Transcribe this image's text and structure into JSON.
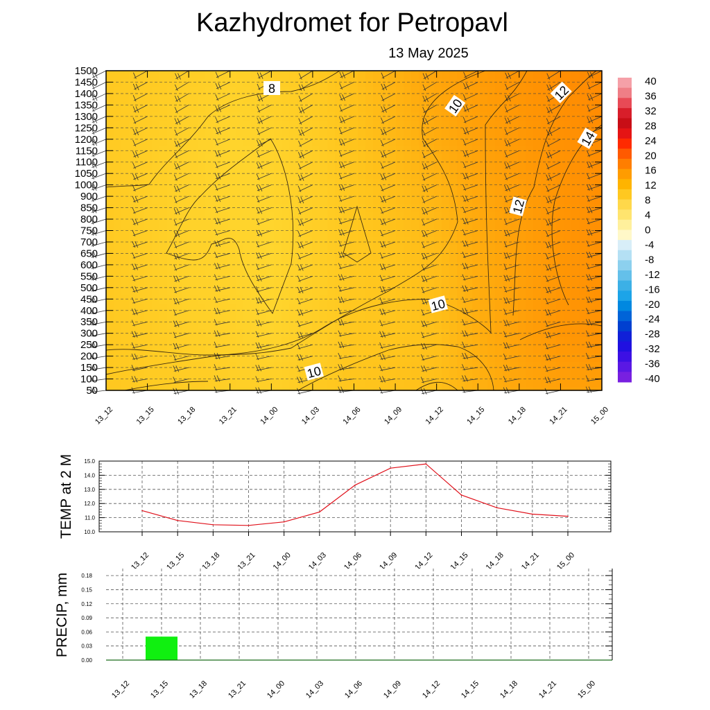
{
  "header": {
    "title": "Kazhydromet  for Petropavl",
    "date": "13 May 2025"
  },
  "chart_data": [
    {
      "type": "heatmap",
      "name": "upper-air cross-section",
      "time_labels": [
        "13_12",
        "13_15",
        "13_18",
        "13_21",
        "14_00",
        "14_03",
        "14_06",
        "14_09",
        "14_12",
        "14_15",
        "14_18",
        "14_21",
        "15_00"
      ],
      "levels": [
        50,
        100,
        150,
        200,
        250,
        300,
        350,
        400,
        450,
        500,
        550,
        600,
        650,
        700,
        750,
        800,
        850,
        900,
        1000,
        1050,
        1100,
        1150,
        1200,
        1250,
        1300,
        1350,
        1400,
        1450,
        1500
      ],
      "temperature_field": [
        [
          9.5,
          9.3,
          9.0,
          8.6,
          8.9,
          9.4,
          10.4,
          11.6,
          12.8,
          13.5,
          14.2,
          15.0,
          15.4
        ],
        [
          9.3,
          9.0,
          8.6,
          8.2,
          8.4,
          9.0,
          10.0,
          11.0,
          12.0,
          13.0,
          13.7,
          14.5,
          15.0
        ],
        [
          9.3,
          8.9,
          8.5,
          8.2,
          8.2,
          8.8,
          9.7,
          10.5,
          11.2,
          12.4,
          13.3,
          14.2,
          14.8
        ],
        [
          9.4,
          9.0,
          8.5,
          8.4,
          8.0,
          8.8,
          9.6,
          10.0,
          10.6,
          12.0,
          13.0,
          14.0,
          14.6
        ],
        [
          9.5,
          9.2,
          8.8,
          8.6,
          8.2,
          8.9,
          9.7,
          9.9,
          10.3,
          11.8,
          13.0,
          14.0,
          14.4
        ],
        [
          9.6,
          9.3,
          9.2,
          8.9,
          8.8,
          9.3,
          9.9,
          10.2,
          10.4,
          11.6,
          12.5,
          13.0,
          13.0
        ]
      ],
      "temperature_levels": [
        1500,
        1200,
        900,
        600,
        300,
        50
      ],
      "contour_labels": [
        "8",
        "10",
        "12",
        "14",
        "12",
        "10",
        "10"
      ],
      "colorbar": {
        "ticks": [
          "40",
          "36",
          "32",
          "28",
          "24",
          "20",
          "16",
          "12",
          "8",
          "4",
          "0",
          "-4",
          "-8",
          "-12",
          "-16",
          "-20",
          "-24",
          "-28",
          "-32",
          "-36",
          "-40"
        ],
        "colors": [
          "#f5a0a8",
          "#ef7e86",
          "#e84a56",
          "#d81e2a",
          "#c80e16",
          "#e51414",
          "#ff2a00",
          "#ff5a00",
          "#ff7e00",
          "#ff9c00",
          "#ffb400",
          "#ffc820",
          "#ffd84a",
          "#ffe46e",
          "#fff09c",
          "#fff8c8",
          "#d8eef8",
          "#b4e0f4",
          "#8cd0ee",
          "#64c0ea",
          "#3cb0e6",
          "#1ca4e8",
          "#0088e0",
          "#0064d8",
          "#0040d0",
          "#1020d8",
          "#2010e0",
          "#3c10e4",
          "#5a18e4",
          "#7820e0"
        ]
      }
    },
    {
      "type": "line",
      "name": "2m temperature",
      "ylabel": "TEMP at 2 M",
      "categories": [
        "13_12",
        "13_15",
        "13_18",
        "13_21",
        "14_00",
        "14_03",
        "14_06",
        "14_09",
        "14_12",
        "14_15",
        "14_18",
        "14_21",
        "15_00"
      ],
      "values": [
        11.5,
        10.8,
        10.5,
        10.45,
        10.7,
        11.4,
        13.3,
        14.5,
        14.8,
        12.6,
        11.7,
        11.25,
        11.1
      ],
      "ylim": [
        10.0,
        15.0
      ],
      "yticks": [
        "10.0",
        "11.0",
        "12.0",
        "13.0",
        "14.0",
        "15.0"
      ],
      "color": "#e0101a"
    },
    {
      "type": "bar",
      "name": "precipitation",
      "ylabel": "PRECIP, mm",
      "categories": [
        "13_12",
        "13_15",
        "13_18",
        "13_21",
        "14_00",
        "14_03",
        "14_06",
        "14_09",
        "14_12",
        "14_15",
        "14_18",
        "14_21",
        "15_00"
      ],
      "values": [
        0,
        0.05,
        0,
        0,
        0,
        0,
        0,
        0,
        0,
        0,
        0,
        0,
        0
      ],
      "ylim": [
        0,
        0.195
      ],
      "yticks": [
        "0.00",
        "0.03",
        "0.06",
        "0.09",
        "0.12",
        "0.15",
        "0.18"
      ],
      "color": "#10f010"
    }
  ]
}
